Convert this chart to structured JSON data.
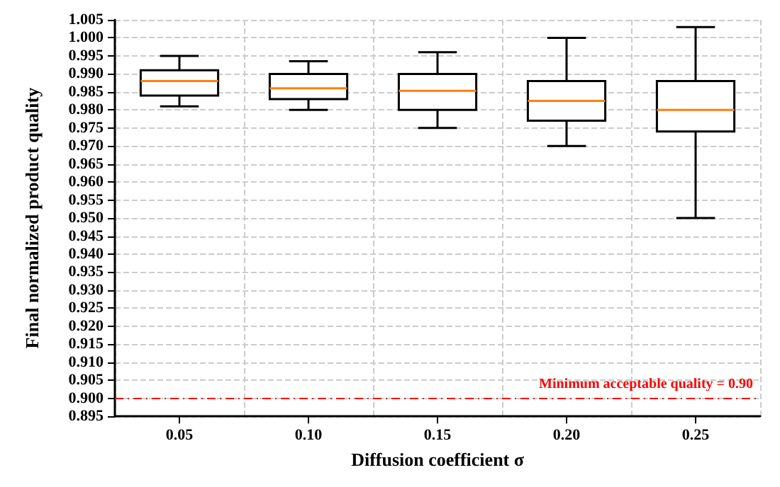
{
  "chart_data": {
    "type": "box",
    "xlabel": "Diffusion coefficient σ",
    "ylabel": "Final normalized product quality",
    "categories": [
      "0.05",
      "0.10",
      "0.15",
      "0.20",
      "0.25"
    ],
    "boxes": [
      {
        "low": 0.981,
        "q1": 0.984,
        "median": 0.988,
        "q3": 0.991,
        "high": 0.995
      },
      {
        "low": 0.98,
        "q1": 0.983,
        "median": 0.986,
        "q3": 0.99,
        "high": 0.9935
      },
      {
        "low": 0.975,
        "q1": 0.98,
        "median": 0.9853,
        "q3": 0.99,
        "high": 0.996
      },
      {
        "low": 0.97,
        "q1": 0.977,
        "median": 0.9825,
        "q3": 0.988,
        "high": 1.0
      },
      {
        "low": 0.95,
        "q1": 0.974,
        "median": 0.98,
        "q3": 0.988,
        "high": 1.003
      }
    ],
    "color": "#000000",
    "ylim": [
      0.895,
      1.005
    ],
    "yticks": [
      {
        "value": 0.895,
        "label": "0.895"
      },
      {
        "value": 0.9,
        "label": "0.900"
      },
      {
        "value": 0.905,
        "label": "0.905"
      },
      {
        "value": 0.91,
        "label": "0.910"
      },
      {
        "value": 0.915,
        "label": "0.915"
      },
      {
        "value": 0.92,
        "label": "0.920"
      },
      {
        "value": 0.925,
        "label": "0.925"
      },
      {
        "value": 0.93,
        "label": "0.930"
      },
      {
        "value": 0.935,
        "label": "0.935"
      },
      {
        "value": 0.94,
        "label": "0.940"
      },
      {
        "value": 0.945,
        "label": "0.945"
      },
      {
        "value": 0.95,
        "label": "0.950"
      },
      {
        "value": 0.955,
        "label": "0.955"
      },
      {
        "value": 0.96,
        "label": "0.960"
      },
      {
        "value": 0.965,
        "label": "0.965"
      },
      {
        "value": 0.97,
        "label": "0.970"
      },
      {
        "value": 0.975,
        "label": "0.975"
      },
      {
        "value": 0.98,
        "label": "0.980"
      },
      {
        "value": 0.985,
        "label": "0.985"
      },
      {
        "value": 0.99,
        "label": "0.990"
      },
      {
        "value": 0.995,
        "label": "0.995"
      },
      {
        "value": 1.0,
        "label": "1.000"
      },
      {
        "value": 1.005,
        "label": "1.005"
      }
    ],
    "ref_lines": [
      {
        "axis": "y",
        "value": 0.9,
        "label": "Minimum acceptable quality = 0.90",
        "color": "#ff0000",
        "line_style": "dashdot"
      }
    ],
    "grid": true
  }
}
